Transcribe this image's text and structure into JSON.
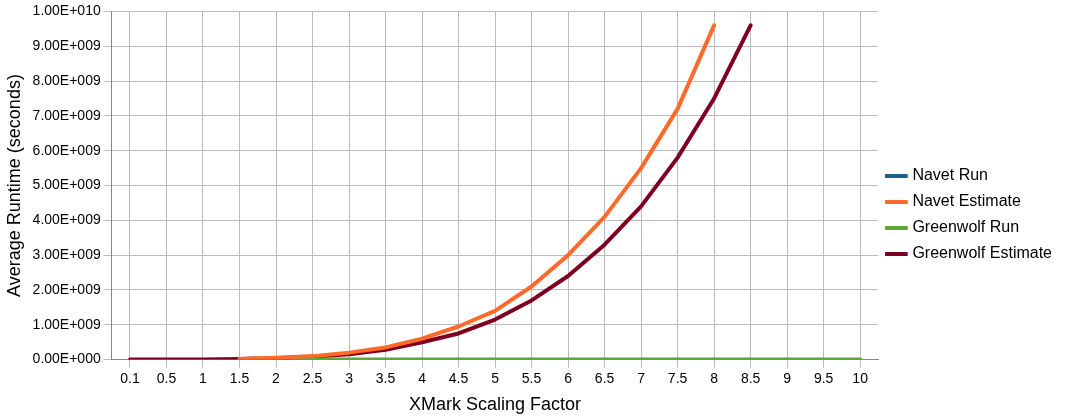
{
  "chart_data": {
    "type": "line",
    "xlabel": "XMark Scaling Factor",
    "ylabel": "Average Runtime (seconds)",
    "categories": [
      "0.1",
      "0.5",
      "1",
      "1.5",
      "2",
      "2.5",
      "3",
      "3.5",
      "4",
      "4.5",
      "5",
      "5.5",
      "6",
      "6.5",
      "7",
      "7.5",
      "8",
      "8.5",
      "9",
      "9.5",
      "10"
    ],
    "series": [
      {
        "name": "Navet Run",
        "color": "#1f5f8b",
        "values": [
          null,
          null,
          null,
          null,
          null,
          null,
          null,
          null,
          null,
          null,
          null,
          null,
          null,
          null,
          null,
          null,
          null,
          null,
          null,
          null,
          null
        ]
      },
      {
        "name": "Navet Estimate",
        "color": "#ff6a2a",
        "values": [
          null,
          null,
          null,
          20000000.0,
          50000000.0,
          100000000.0,
          200000000.0,
          350000000.0,
          600000000.0,
          950000000.0,
          1400000000.0,
          2100000000.0,
          3000000000.0,
          4100000000.0,
          5500000000.0,
          7200000000.0,
          9600000000.0,
          null,
          null,
          null,
          null
        ]
      },
      {
        "name": "Greenwolf Run",
        "color": "#5ca632",
        "values": [
          null,
          null,
          null,
          0,
          0,
          0,
          0,
          0,
          0,
          0,
          0,
          0,
          0,
          0,
          0,
          0,
          0,
          0,
          0,
          0,
          0
        ]
      },
      {
        "name": "Greenwolf Estimate",
        "color": "#7e0021",
        "values": [
          0,
          0,
          0,
          20000000.0,
          40000000.0,
          80000000.0,
          150000000.0,
          280000000.0,
          500000000.0,
          750000000.0,
          1150000000.0,
          1700000000.0,
          2400000000.0,
          3300000000.0,
          4400000000.0,
          5800000000.0,
          7500000000.0,
          9600000000.0,
          null,
          null,
          null
        ]
      }
    ],
    "ylim": [
      0,
      10000000000
    ],
    "yticks": [
      {
        "value": 0,
        "label": "0.00E+000"
      },
      {
        "value": 1000000000,
        "label": "1.00E+009"
      },
      {
        "value": 2000000000,
        "label": "2.00E+009"
      },
      {
        "value": 3000000000,
        "label": "3.00E+009"
      },
      {
        "value": 4000000000,
        "label": "4.00E+009"
      },
      {
        "value": 5000000000,
        "label": "5.00E+009"
      },
      {
        "value": 6000000000,
        "label": "6.00E+009"
      },
      {
        "value": 7000000000,
        "label": "7.00E+009"
      },
      {
        "value": 8000000000,
        "label": "8.00E+009"
      },
      {
        "value": 9000000000,
        "label": "9.00E+009"
      },
      {
        "value": 10000000000,
        "label": "1.00E+010"
      }
    ],
    "grid": true,
    "legend": "right",
    "marker": "none",
    "line_style": "solid"
  }
}
